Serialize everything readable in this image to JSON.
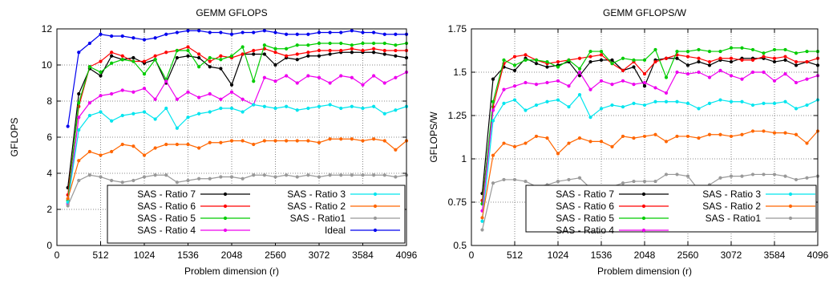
{
  "chart_data": [
    {
      "type": "line",
      "title": "GEMM GFLOPS",
      "xlabel": "Problem dimension (r)",
      "ylabel": "GFLOPS",
      "xlim": [
        0,
        4096
      ],
      "ylim": [
        0,
        12
      ],
      "xticks": [
        "0",
        "512",
        "1024",
        "1536",
        "2048",
        "2560",
        "3072",
        "3584",
        "4096"
      ],
      "xtick_values": [
        0,
        512,
        1024,
        1536,
        2048,
        2560,
        3072,
        3584,
        4096
      ],
      "yticks": [
        "0",
        "2",
        "4",
        "6",
        "8",
        "10",
        "12"
      ],
      "ytick_values": [
        0,
        2,
        4,
        6,
        8,
        10,
        12
      ],
      "grid": true,
      "legend_placement": "bottom-center",
      "legend_columns": 2,
      "x": [
        128,
        256,
        384,
        512,
        640,
        768,
        896,
        1024,
        1152,
        1280,
        1408,
        1536,
        1664,
        1792,
        1920,
        2048,
        2176,
        2304,
        2432,
        2560,
        2688,
        2816,
        2944,
        3072,
        3200,
        3328,
        3456,
        3584,
        3712,
        3840,
        3968,
        4096
      ],
      "series": [
        {
          "name": "SAS - Ratio 7",
          "color": "#000000",
          "values": [
            3.2,
            8.4,
            9.8,
            9.4,
            10.5,
            10.3,
            10.4,
            10.1,
            10.3,
            9.0,
            10.4,
            10.5,
            10.4,
            9.9,
            9.8,
            8.9,
            10.6,
            10.6,
            10.6,
            10.0,
            10.4,
            10.3,
            10.5,
            10.5,
            10.6,
            10.7,
            10.7,
            10.7,
            10.7,
            10.6,
            10.5,
            10.4
          ]
        },
        {
          "name": "SAS - Ratio 6",
          "color": "#ff0000",
          "values": [
            2.8,
            7.7,
            9.9,
            10.2,
            10.7,
            10.5,
            10.2,
            10.2,
            10.5,
            10.7,
            10.8,
            11.0,
            10.6,
            10.2,
            10.5,
            10.4,
            10.6,
            10.8,
            10.9,
            10.7,
            10.5,
            10.6,
            10.7,
            10.8,
            10.8,
            10.8,
            10.9,
            10.8,
            10.9,
            10.8,
            10.8,
            10.8
          ]
        },
        {
          "name": "SAS - Ratio 5",
          "color": "#00cc00",
          "values": [
            2.5,
            7.9,
            9.9,
            9.6,
            10.1,
            10.3,
            10.2,
            9.5,
            10.3,
            9.2,
            10.8,
            10.8,
            9.9,
            10.4,
            10.3,
            10.5,
            11.0,
            9.1,
            11.1,
            10.9,
            10.9,
            11.1,
            11.1,
            11.2,
            11.2,
            11.2,
            11.1,
            11.2,
            11.2,
            11.2,
            11.1,
            11.2
          ]
        },
        {
          "name": "SAS - Ratio 4",
          "color": "#ee00ee",
          "values": [
            2.3,
            7.1,
            7.9,
            8.3,
            8.4,
            8.6,
            8.5,
            8.7,
            8.1,
            9.1,
            8.1,
            8.5,
            8.2,
            8.4,
            8.1,
            8.5,
            8.1,
            7.8,
            9.3,
            9.1,
            9.4,
            9.0,
            9.4,
            9.3,
            9.0,
            9.4,
            9.3,
            8.9,
            9.4,
            9.0,
            9.3,
            9.6
          ]
        },
        {
          "name": "SAS - Ratio 3",
          "color": "#00e5ee",
          "values": [
            2.4,
            6.4,
            7.2,
            7.4,
            6.9,
            7.2,
            7.3,
            7.4,
            7.0,
            7.6,
            6.5,
            7.1,
            7.3,
            7.4,
            7.6,
            7.6,
            7.4,
            7.8,
            7.7,
            7.6,
            7.7,
            7.5,
            7.6,
            7.7,
            7.8,
            7.6,
            7.7,
            7.6,
            7.7,
            7.3,
            7.5,
            7.7
          ]
        },
        {
          "name": "SAS - Ratio 2",
          "color": "#ff6600",
          "values": [
            2.6,
            4.7,
            5.2,
            5.0,
            5.2,
            5.6,
            5.5,
            5.0,
            5.4,
            5.6,
            5.6,
            5.6,
            5.4,
            5.7,
            5.7,
            5.8,
            5.8,
            5.6,
            5.8,
            5.8,
            5.8,
            5.8,
            5.8,
            5.7,
            5.9,
            5.9,
            5.9,
            5.8,
            5.9,
            5.8,
            5.3,
            5.8
          ]
        },
        {
          "name": "SAS - Ratio1",
          "color": "#999999",
          "values": [
            2.2,
            3.6,
            3.9,
            3.8,
            3.6,
            3.5,
            3.6,
            3.8,
            3.9,
            3.9,
            3.5,
            3.6,
            3.7,
            3.7,
            3.8,
            3.8,
            3.7,
            3.9,
            3.9,
            3.8,
            3.9,
            3.8,
            3.9,
            3.8,
            3.9,
            3.9,
            3.9,
            3.9,
            3.9,
            3.9,
            3.8,
            3.9
          ]
        },
        {
          "name": "Ideal",
          "color": "#0000ee",
          "values": [
            6.6,
            10.7,
            11.2,
            11.7,
            11.6,
            11.6,
            11.5,
            11.4,
            11.5,
            11.7,
            11.8,
            11.9,
            11.9,
            11.8,
            11.8,
            11.7,
            11.8,
            11.8,
            11.9,
            11.8,
            11.7,
            11.7,
            11.7,
            11.8,
            11.8,
            11.8,
            11.9,
            11.8,
            11.8,
            11.7,
            11.7,
            11.7
          ]
        }
      ]
    },
    {
      "type": "line",
      "title": "GEMM GFLOPS/W",
      "xlabel": "Problem dimension (r)",
      "ylabel": "GFLOPS/W",
      "xlim": [
        0,
        4096
      ],
      "ylim": [
        0.5,
        1.75
      ],
      "xticks": [
        "0",
        "512",
        "1024",
        "1536",
        "2048",
        "2560",
        "3072",
        "3584",
        "4096"
      ],
      "xtick_values": [
        0,
        512,
        1024,
        1536,
        2048,
        2560,
        3072,
        3584,
        4096
      ],
      "yticks": [
        "0.5",
        "0.75",
        "1",
        "1.25",
        "1.5",
        "1.75"
      ],
      "ytick_values": [
        0.5,
        0.75,
        1.0,
        1.25,
        1.5,
        1.75
      ],
      "grid": true,
      "legend_placement": "bottom-center",
      "legend_columns": 2,
      "x": [
        128,
        256,
        384,
        512,
        640,
        768,
        896,
        1024,
        1152,
        1280,
        1408,
        1536,
        1664,
        1792,
        1920,
        2048,
        2176,
        2304,
        2432,
        2560,
        2688,
        2816,
        2944,
        3072,
        3200,
        3328,
        3456,
        3584,
        3712,
        3840,
        3968,
        4096
      ],
      "series": [
        {
          "name": "SAS - Ratio 7",
          "color": "#000000",
          "values": [
            0.8,
            1.46,
            1.53,
            1.51,
            1.58,
            1.55,
            1.53,
            1.54,
            1.56,
            1.48,
            1.56,
            1.57,
            1.57,
            1.51,
            1.53,
            1.42,
            1.57,
            1.58,
            1.58,
            1.54,
            1.56,
            1.54,
            1.57,
            1.56,
            1.58,
            1.58,
            1.58,
            1.56,
            1.57,
            1.54,
            1.56,
            1.54
          ]
        },
        {
          "name": "SAS - Ratio 6",
          "color": "#ff0000",
          "values": [
            0.76,
            1.3,
            1.55,
            1.59,
            1.6,
            1.57,
            1.55,
            1.56,
            1.57,
            1.58,
            1.59,
            1.6,
            1.55,
            1.51,
            1.56,
            1.49,
            1.56,
            1.58,
            1.6,
            1.59,
            1.58,
            1.56,
            1.58,
            1.58,
            1.57,
            1.57,
            1.59,
            1.58,
            1.59,
            1.56,
            1.56,
            1.58
          ]
        },
        {
          "name": "SAS - Ratio 5",
          "color": "#00cc00",
          "values": [
            0.74,
            1.33,
            1.57,
            1.54,
            1.57,
            1.57,
            1.56,
            1.53,
            1.57,
            1.52,
            1.62,
            1.62,
            1.55,
            1.58,
            1.57,
            1.57,
            1.63,
            1.47,
            1.62,
            1.62,
            1.63,
            1.62,
            1.62,
            1.64,
            1.64,
            1.63,
            1.61,
            1.63,
            1.63,
            1.61,
            1.62,
            1.62
          ]
        },
        {
          "name": "SAS - Ratio 4",
          "color": "#ee00ee",
          "values": [
            0.7,
            1.28,
            1.4,
            1.42,
            1.44,
            1.43,
            1.44,
            1.45,
            1.42,
            1.5,
            1.4,
            1.45,
            1.43,
            1.45,
            1.43,
            1.44,
            1.41,
            1.38,
            1.5,
            1.49,
            1.5,
            1.47,
            1.51,
            1.48,
            1.46,
            1.5,
            1.5,
            1.45,
            1.49,
            1.44,
            1.46,
            1.48
          ]
        },
        {
          "name": "SAS - Ratio 3",
          "color": "#00e5ee",
          "values": [
            0.64,
            1.22,
            1.32,
            1.34,
            1.28,
            1.31,
            1.33,
            1.34,
            1.3,
            1.37,
            1.24,
            1.29,
            1.31,
            1.3,
            1.32,
            1.31,
            1.33,
            1.33,
            1.33,
            1.32,
            1.29,
            1.32,
            1.34,
            1.33,
            1.33,
            1.31,
            1.32,
            1.32,
            1.33,
            1.29,
            1.31,
            1.34
          ]
        },
        {
          "name": "SAS - Ratio 2",
          "color": "#ff6600",
          "values": [
            0.66,
            1.02,
            1.09,
            1.07,
            1.09,
            1.13,
            1.12,
            1.03,
            1.09,
            1.12,
            1.1,
            1.1,
            1.07,
            1.13,
            1.12,
            1.13,
            1.14,
            1.1,
            1.13,
            1.13,
            1.12,
            1.14,
            1.14,
            1.13,
            1.14,
            1.16,
            1.16,
            1.15,
            1.15,
            1.14,
            1.09,
            1.16
          ]
        },
        {
          "name": "SAS - Ratio1",
          "color": "#999999",
          "values": [
            0.59,
            0.86,
            0.88,
            0.88,
            0.87,
            0.84,
            0.85,
            0.87,
            0.88,
            0.89,
            0.83,
            0.84,
            0.84,
            0.86,
            0.87,
            0.87,
            0.87,
            0.91,
            0.91,
            0.9,
            0.82,
            0.85,
            0.89,
            0.9,
            0.9,
            0.91,
            0.91,
            0.91,
            0.9,
            0.88,
            0.89,
            0.9
          ]
        }
      ]
    }
  ]
}
